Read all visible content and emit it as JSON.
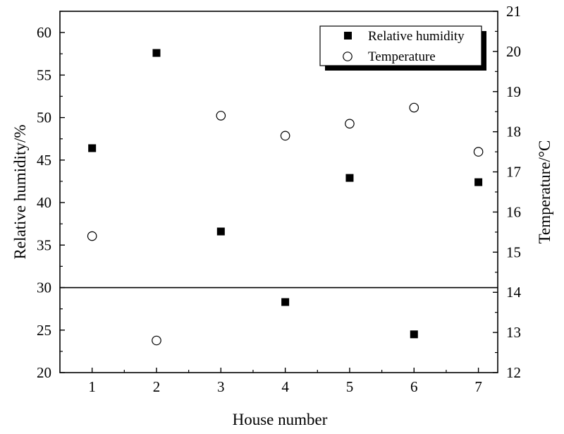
{
  "chart_data": {
    "type": "scatter",
    "xlabel": "House number",
    "ylabel_left": "Relative humidity/%",
    "ylabel_right": "Temperature/°C",
    "x": [
      1,
      2,
      3,
      4,
      5,
      6,
      7
    ],
    "xlim": [
      0.5,
      7.3
    ],
    "ylim_left": [
      20,
      62.5
    ],
    "ylim_right": [
      12,
      21
    ],
    "x_ticks": [
      1,
      2,
      3,
      4,
      5,
      6,
      7
    ],
    "y_ticks_left": [
      20,
      25,
      30,
      35,
      40,
      45,
      50,
      55,
      60
    ],
    "y_ticks_right": [
      12,
      13,
      14,
      15,
      16,
      17,
      18,
      19,
      20,
      21
    ],
    "reference_line": {
      "axis": "left",
      "value": 30
    },
    "grid": false,
    "legend_position": "top-right",
    "series": [
      {
        "name": "Relative humidity",
        "marker": "filled-square",
        "axis": "left",
        "values": [
          46.4,
          57.6,
          36.6,
          28.3,
          42.9,
          24.5,
          42.4
        ]
      },
      {
        "name": "Temperature",
        "marker": "open-circle",
        "axis": "right",
        "values": [
          15.4,
          12.8,
          18.4,
          17.9,
          18.2,
          18.6,
          17.5
        ]
      }
    ]
  }
}
